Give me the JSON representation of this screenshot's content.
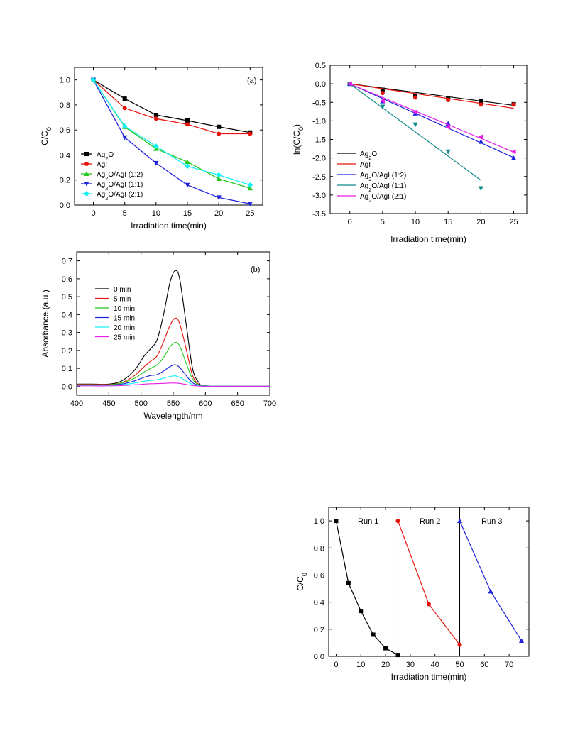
{
  "chart_data": [
    {
      "id": "a",
      "type": "line",
      "annotation": "(a)",
      "xlabel": "Irradiation time(min)",
      "ylabel": "C/C0",
      "xlim": [
        -3,
        27
      ],
      "ylim": [
        0,
        1.1
      ],
      "xticks": [
        0,
        5,
        10,
        15,
        20,
        25
      ],
      "yticks": [
        0.0,
        0.2,
        0.4,
        0.6,
        0.8,
        1.0
      ],
      "ytick_labels": [
        "0.0",
        "0.2",
        "0.4",
        "0.6",
        "0.8",
        "1.0"
      ],
      "legend_position": "bottom-left",
      "x": [
        0,
        5,
        10,
        15,
        20,
        25
      ],
      "series": [
        {
          "name": "Ag2O",
          "color": "#000000",
          "marker": "square",
          "values": [
            1.0,
            0.85,
            0.72,
            0.675,
            0.625,
            0.58
          ]
        },
        {
          "name": "AgI",
          "color": "#e8140c",
          "marker": "circle",
          "values": [
            1.0,
            0.775,
            0.69,
            0.645,
            0.57,
            0.57
          ]
        },
        {
          "name": "Ag2O/AgI (1:2)",
          "color": "#22c81e",
          "marker": "triangle-up",
          "values": [
            1.0,
            0.625,
            0.45,
            0.345,
            0.21,
            0.135
          ]
        },
        {
          "name": "Ag2O/AgI (1:1)",
          "color": "#1e23dc",
          "marker": "triangle-down",
          "values": [
            1.0,
            0.54,
            0.335,
            0.16,
            0.06,
            0.01
          ]
        },
        {
          "name": "Ag2O/AgI (2:1)",
          "color": "#14f0f5",
          "marker": "diamond",
          "values": [
            1.0,
            0.63,
            0.47,
            0.31,
            0.24,
            0.16
          ]
        }
      ]
    },
    {
      "id": "b",
      "type": "scatter",
      "xlabel": "Irradiation time(min)",
      "ylabel": "ln(C/C0)",
      "xlim": [
        -3,
        27
      ],
      "ylim": [
        -3.5,
        0.5
      ],
      "xticks": [
        0,
        5,
        10,
        15,
        20,
        25
      ],
      "yticks": [
        0.5,
        0.0,
        -0.5,
        -1.0,
        -1.5,
        -2.0,
        -2.5,
        -3.0,
        -3.5
      ],
      "ytick_labels": [
        "0.5",
        "0.0",
        "-0.5",
        "-1.0",
        "-1.5",
        "-2.0",
        "-2.5",
        "-3.0",
        "-3.5"
      ],
      "legend_position": "bottom-left",
      "series": [
        {
          "name": "Ag2O",
          "color": "#000000",
          "marker": "square",
          "x": [
            0,
            5,
            10,
            15,
            20,
            25
          ],
          "values": [
            0,
            -0.16,
            -0.32,
            -0.39,
            -0.47,
            -0.55
          ],
          "fit": [
            [
              0,
              0
            ],
            [
              25,
              -0.58
            ]
          ]
        },
        {
          "name": "AgI",
          "color": "#e8140c",
          "marker": "circle",
          "x": [
            0,
            5,
            10,
            15,
            20,
            25
          ],
          "values": [
            0,
            -0.25,
            -0.37,
            -0.44,
            -0.56,
            -0.56
          ],
          "fit": [
            [
              0,
              0
            ],
            [
              25,
              -0.66
            ]
          ]
        },
        {
          "name": "Ag2O/AgI (1:2)",
          "color": "#1e23dc",
          "marker": "triangle-up",
          "x": [
            0,
            5,
            10,
            15,
            20,
            25
          ],
          "values": [
            0,
            -0.47,
            -0.8,
            -1.07,
            -1.56,
            -2.0
          ],
          "fit": [
            [
              0,
              0
            ],
            [
              25,
              -1.99
            ]
          ]
        },
        {
          "name": "Ag2O/AgI (1:1)",
          "color": "#128a8a",
          "marker": "triangle-down",
          "x": [
            0,
            5,
            10,
            15,
            20
          ],
          "values": [
            0,
            -0.62,
            -1.1,
            -1.83,
            -2.82
          ],
          "fit": [
            [
              0,
              0
            ],
            [
              20,
              -2.6
            ]
          ]
        },
        {
          "name": "Ag2O/AgI (2:1)",
          "color": "#e61ee6",
          "marker": "triangle-left",
          "x": [
            0,
            5,
            10,
            15,
            20,
            25
          ],
          "values": [
            0,
            -0.46,
            -0.76,
            -1.17,
            -1.43,
            -1.83
          ],
          "fit": [
            [
              0,
              0
            ],
            [
              25,
              -1.84
            ]
          ]
        }
      ]
    },
    {
      "id": "c",
      "type": "line",
      "annotation": "(b)",
      "xlabel": "Wavelength/nm",
      "ylabel": "Absorbance (a.u.)",
      "xlim": [
        400,
        700
      ],
      "ylim": [
        -0.05,
        0.75
      ],
      "xticks": [
        400,
        450,
        500,
        550,
        600,
        650,
        700
      ],
      "yticks": [
        0.0,
        0.1,
        0.2,
        0.3,
        0.4,
        0.5,
        0.6,
        0.7
      ],
      "ytick_labels": [
        "0.0",
        "0.1",
        "0.2",
        "0.3",
        "0.4",
        "0.5",
        "0.6",
        "0.7"
      ],
      "legend_position": "top-left",
      "x": [
        400,
        425,
        450,
        470,
        490,
        505,
        515,
        525,
        535,
        545,
        553,
        560,
        570,
        580,
        590,
        600,
        650,
        700
      ],
      "series": [
        {
          "name": "0 min",
          "color": "#000000",
          "values": [
            0.012,
            0.012,
            0.012,
            0.03,
            0.09,
            0.17,
            0.21,
            0.26,
            0.4,
            0.58,
            0.645,
            0.6,
            0.35,
            0.1,
            0.02,
            0.003,
            0.0,
            0.0
          ]
        },
        {
          "name": "5 min",
          "color": "#e8140c",
          "values": [
            0.01,
            0.01,
            0.01,
            0.02,
            0.06,
            0.11,
            0.14,
            0.17,
            0.25,
            0.34,
            0.38,
            0.35,
            0.21,
            0.06,
            0.01,
            0.002,
            0.0,
            0.0
          ]
        },
        {
          "name": "10 min",
          "color": "#22c81e",
          "values": [
            0.008,
            0.008,
            0.008,
            0.018,
            0.045,
            0.08,
            0.1,
            0.12,
            0.16,
            0.22,
            0.245,
            0.225,
            0.13,
            0.04,
            0.008,
            0.002,
            0.0,
            0.0
          ]
        },
        {
          "name": "15 min",
          "color": "#1e23dc",
          "values": [
            0.006,
            0.006,
            0.006,
            0.012,
            0.03,
            0.05,
            0.06,
            0.065,
            0.085,
            0.11,
            0.12,
            0.105,
            0.06,
            0.02,
            0.005,
            0.001,
            0.0,
            0.0
          ]
        },
        {
          "name": "20 min",
          "color": "#14f0f5",
          "values": [
            0.004,
            0.004,
            0.004,
            0.008,
            0.018,
            0.028,
            0.033,
            0.036,
            0.045,
            0.055,
            0.058,
            0.05,
            0.03,
            0.01,
            0.003,
            0.001,
            0.0,
            0.0
          ]
        },
        {
          "name": "25 min",
          "color": "#e61ee6",
          "values": [
            0.002,
            0.002,
            0.002,
            0.004,
            0.008,
            0.012,
            0.014,
            0.015,
            0.016,
            0.018,
            0.018,
            0.016,
            0.01,
            0.004,
            0.001,
            0.0,
            0.0,
            0.0
          ]
        }
      ]
    },
    {
      "id": "d",
      "type": "line",
      "xlabel": "Irradiation time(min)",
      "ylabel": "C/C0",
      "xlim": [
        -3,
        78
      ],
      "ylim": [
        0,
        1.1
      ],
      "xticks": [
        0,
        10,
        20,
        30,
        40,
        50,
        60,
        70
      ],
      "yticks": [
        0.0,
        0.2,
        0.4,
        0.6,
        0.8,
        1.0
      ],
      "ytick_labels": [
        "0.0",
        "0.2",
        "0.4",
        "0.6",
        "0.8",
        "1.0"
      ],
      "dividers_x": [
        25,
        50
      ],
      "annotations": [
        {
          "text": "Run 1",
          "x": 13,
          "y": 1.0
        },
        {
          "text": "Run 2",
          "x": 38,
          "y": 1.0
        },
        {
          "text": "Run 3",
          "x": 63,
          "y": 1.0
        }
      ],
      "series": [
        {
          "name": "Run 1",
          "color": "#000000",
          "marker": "square",
          "x": [
            0,
            5,
            10,
            15,
            20,
            25
          ],
          "values": [
            1.0,
            0.54,
            0.335,
            0.16,
            0.06,
            0.01
          ]
        },
        {
          "name": "Run 2",
          "color": "#e8140c",
          "marker": "circle",
          "x": [
            25,
            37.5,
            50
          ],
          "values": [
            1.0,
            0.385,
            0.085
          ]
        },
        {
          "name": "Run 3",
          "color": "#1e23dc",
          "marker": "triangle-up",
          "x": [
            50,
            62.5,
            75
          ],
          "values": [
            1.0,
            0.48,
            0.115
          ]
        }
      ]
    }
  ]
}
